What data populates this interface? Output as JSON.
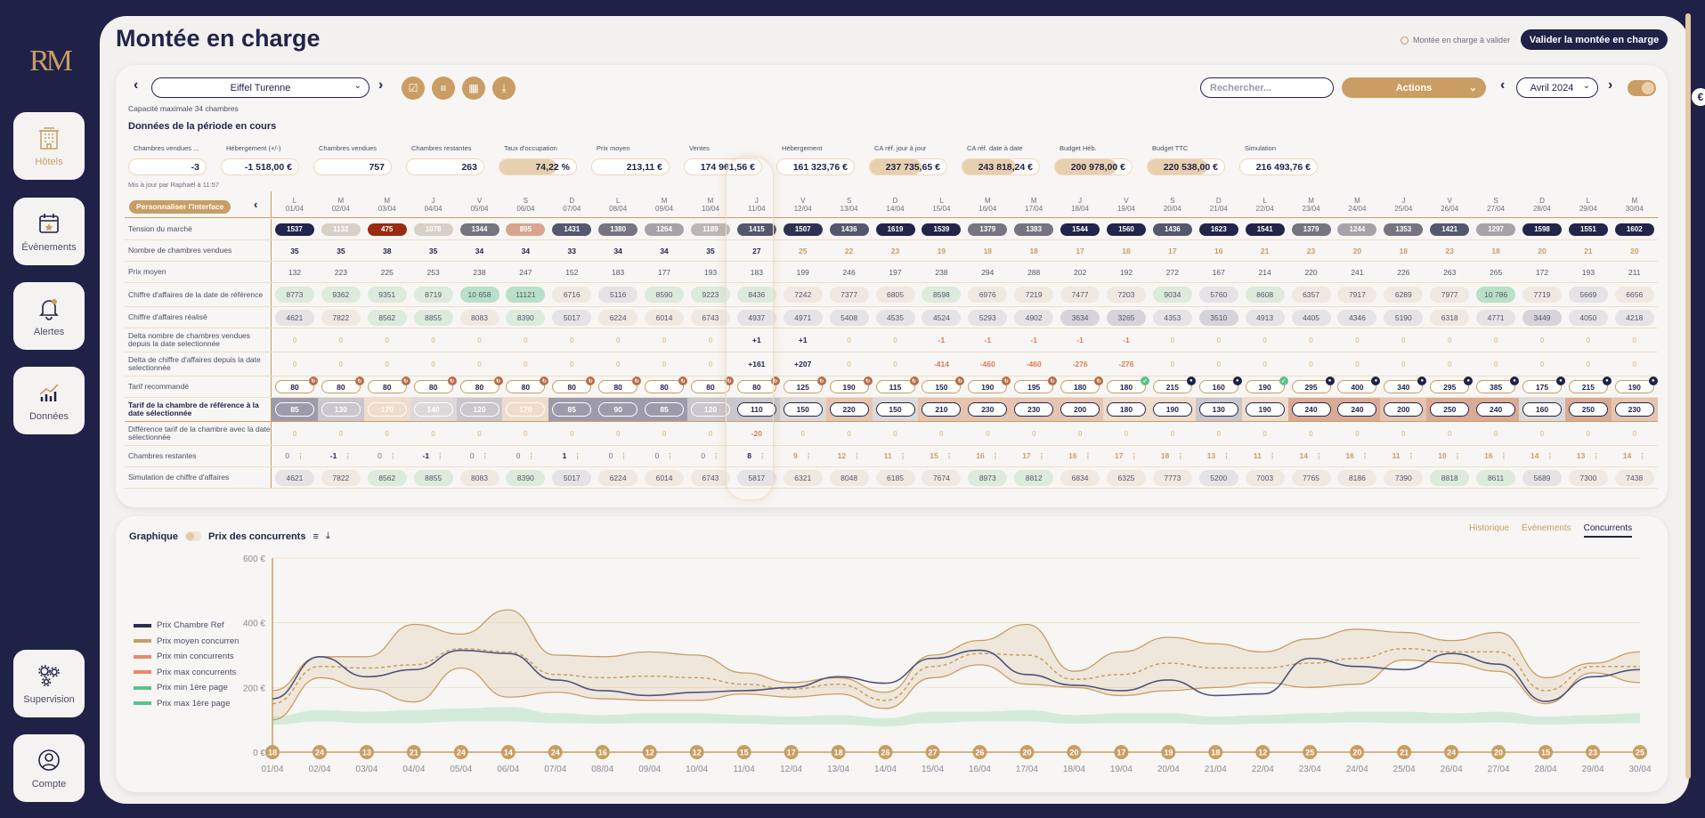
{
  "app": {
    "logo": "RM",
    "title": "Montée en charge",
    "to_validate": "Montée en charge à valider",
    "validate_button": "Valider la montée en charge"
  },
  "sidebar": {
    "items": [
      {
        "label": "Hôtels",
        "icon": "hotel-icon",
        "active": true
      },
      {
        "label": "Évènements",
        "icon": "calendar-icon"
      },
      {
        "label": "Alertes",
        "icon": "bell-icon"
      },
      {
        "label": "Données",
        "icon": "chart-icon"
      },
      {
        "label": "Supervision",
        "icon": "gears-icon"
      },
      {
        "label": "Compte",
        "icon": "user-icon"
      }
    ]
  },
  "toolbar": {
    "hotel": "Eiffel Turenne",
    "search_placeholder": "Rechercher...",
    "actions": "Actions",
    "month": "Avril 2024",
    "toggle_on": true
  },
  "capacity": "Capacité maximale 34 chambres",
  "section_title": "Données de la période en cours",
  "kpis": [
    {
      "label": "Chambres vendues ...",
      "value": "-3"
    },
    {
      "label": "Hébergement (+/-)",
      "value": "-1 518,00 €"
    },
    {
      "label": "Chambres vendues",
      "value": "757"
    },
    {
      "label": "Chambres restantes",
      "value": "263"
    },
    {
      "label": "Taux d'occupation",
      "value": "74,22 %",
      "fill": 74.22
    },
    {
      "label": "Prix moyen",
      "value": "213,11 €"
    },
    {
      "label": "Ventes",
      "value": "174 961,56 €"
    },
    {
      "label": "Hébergement",
      "value": "161 323,76 €"
    },
    {
      "label": "CA réf. jour à jour",
      "value": "237 735,65 €",
      "fill": 68
    },
    {
      "label": "CA réf. date à date",
      "value": "243 818,24 €",
      "fill": 70
    },
    {
      "label": "Budget Héb.",
      "value": "200 978,00 €",
      "fill": 80
    },
    {
      "label": "Budget TTC",
      "value": "220 538,00 €",
      "fill": 78
    },
    {
      "label": "Simulation",
      "value": "216 493,76 €"
    }
  ],
  "updated": "Mis à jour par Raphaël à 11:57",
  "customize": "Personnaliser l'interface",
  "selected_day": "11/04",
  "days": {
    "letters": [
      "L",
      "M",
      "M",
      "J",
      "V",
      "S",
      "D",
      "L",
      "M",
      "M",
      "J",
      "V",
      "S",
      "D",
      "L",
      "M",
      "M",
      "J",
      "V",
      "S",
      "D",
      "L",
      "M",
      "M",
      "J",
      "V",
      "S",
      "D",
      "L",
      "M"
    ],
    "dates": [
      "01/04",
      "02/04",
      "03/04",
      "04/04",
      "05/04",
      "06/04",
      "07/04",
      "08/04",
      "09/04",
      "10/04",
      "11/04",
      "12/04",
      "13/04",
      "14/04",
      "15/04",
      "16/04",
      "17/04",
      "18/04",
      "19/04",
      "20/04",
      "21/04",
      "22/04",
      "23/04",
      "24/04",
      "25/04",
      "26/04",
      "27/04",
      "28/04",
      "29/04",
      "30/04"
    ]
  },
  "table": {
    "rows": [
      {
        "label": "Tension du marché",
        "type": "tension",
        "values": [
          "1537",
          "1132",
          "475",
          "1078",
          "1344",
          "895",
          "1431",
          "1380",
          "1264",
          "1189",
          "1415",
          "1507",
          "1436",
          "1619",
          "1539",
          "1379",
          "1383",
          "1544",
          "1560",
          "1436",
          "1623",
          "1541",
          "1379",
          "1244",
          "1353",
          "1421",
          "1297",
          "1598",
          "1551",
          "1602"
        ]
      },
      {
        "label": "Nombre de chambres vendues",
        "type": "sold",
        "values": [
          "35",
          "35",
          "38",
          "35",
          "34",
          "34",
          "33",
          "34",
          "34",
          "35",
          "27",
          "25",
          "22",
          "23",
          "19",
          "18",
          "18",
          "17",
          "18",
          "17",
          "16",
          "21",
          "23",
          "20",
          "18",
          "23",
          "18",
          "20",
          "21",
          "20"
        ]
      },
      {
        "label": "Prix moyen",
        "type": "plain",
        "values": [
          "132",
          "223",
          "225",
          "253",
          "238",
          "247",
          "152",
          "183",
          "177",
          "193",
          "183",
          "199",
          "246",
          "197",
          "238",
          "294",
          "288",
          "202",
          "192",
          "272",
          "167",
          "214",
          "220",
          "241",
          "226",
          "263",
          "265",
          "172",
          "193",
          "211"
        ]
      },
      {
        "label": "Chiffre d'affaires de la date de référence",
        "type": "ca",
        "values": [
          "8773",
          "9362",
          "9351",
          "8719",
          "10 658",
          "11121",
          "6716",
          "5116",
          "8590",
          "9223",
          "8436",
          "7242",
          "7377",
          "6805",
          "8598",
          "6976",
          "7219",
          "7477",
          "7203",
          "9034",
          "5760",
          "8608",
          "6357",
          "7917",
          "6289",
          "7977",
          "10 786",
          "7719",
          "5669",
          "6656"
        ]
      },
      {
        "label": "Chiffre d'affaires réalisé",
        "type": "ca",
        "values": [
          "4621",
          "7822",
          "8562",
          "8855",
          "8083",
          "8390",
          "5017",
          "6224",
          "6014",
          "6743",
          "4937",
          "4971",
          "5408",
          "4535",
          "4524",
          "5293",
          "4902",
          "3634",
          "3265",
          "4353",
          "3510",
          "4913",
          "4405",
          "4346",
          "5190",
          "6318",
          "4771",
          "3449",
          "4050",
          "4218"
        ]
      },
      {
        "label": "Delta nombre de chambres vendues depuis la date selectionnée",
        "type": "delta",
        "values": [
          "0",
          "0",
          "0",
          "0",
          "0",
          "0",
          "0",
          "0",
          "0",
          "0",
          "+1",
          "+1",
          "0",
          "0",
          "-1",
          "-1",
          "-1",
          "-1",
          "-1",
          "0",
          "0",
          "0",
          "0",
          "0",
          "0",
          "0",
          "0",
          "0",
          "0",
          "0"
        ]
      },
      {
        "label": "Delta de chiffre d'affaires depuis la date selectionnée",
        "type": "delta",
        "values": [
          "0",
          "0",
          "0",
          "0",
          "0",
          "0",
          "0",
          "0",
          "0",
          "0",
          "+161",
          "+207",
          "0",
          "0",
          "-414",
          "-460",
          "-460",
          "-276",
          "-276",
          "0",
          "0",
          "0",
          "0",
          "0",
          "0",
          "0",
          "0",
          "0",
          "0",
          "0"
        ]
      },
      {
        "label": "Tarif recommandé",
        "type": "rec",
        "values": [
          "80",
          "80",
          "80",
          "80",
          "80",
          "80",
          "80",
          "80",
          "80",
          "80",
          "80",
          "125",
          "190",
          "115",
          "150",
          "190",
          "195",
          "180",
          "180",
          "215",
          "160",
          "190",
          "295",
          "400",
          "340",
          "295",
          "385",
          "175",
          "215",
          "190"
        ],
        "status": [
          "refresh",
          "refresh",
          "refresh",
          "refresh",
          "refresh",
          "refresh",
          "refresh",
          "refresh",
          "refresh",
          "refresh",
          "refresh",
          "refresh",
          "refresh",
          "refresh",
          "refresh",
          "refresh",
          "refresh",
          "refresh",
          "validated",
          "locked",
          "locked",
          "validated",
          "locked",
          "locked",
          "locked",
          "locked",
          "locked",
          "locked",
          "locked",
          "locked"
        ]
      },
      {
        "label": "Tarif de la chambre de référence à la date sélectionnée",
        "type": "ref",
        "values": [
          "85",
          "130",
          "170",
          "140",
          "120",
          "170",
          "85",
          "90",
          "85",
          "120",
          "110",
          "150",
          "220",
          "150",
          "210",
          "230",
          "230",
          "200",
          "180",
          "190",
          "130",
          "190",
          "240",
          "240",
          "200",
          "250",
          "240",
          "160",
          "250",
          "230"
        ]
      },
      {
        "label": "Différence tarif de la chambre avec la date sélectionnée",
        "type": "delta",
        "values": [
          "0",
          "0",
          "0",
          "0",
          "0",
          "0",
          "0",
          "0",
          "0",
          "0",
          "-20",
          "0",
          "0",
          "0",
          "0",
          "0",
          "0",
          "0",
          "0",
          "0",
          "0",
          "0",
          "0",
          "0",
          "0",
          "0",
          "0",
          "0",
          "0",
          "0"
        ]
      },
      {
        "label": "Chambres restantes",
        "type": "rest",
        "values": [
          "0",
          "-1",
          "0",
          "-1",
          "0",
          "0",
          "1",
          "0",
          "0",
          "0",
          "8",
          "9",
          "12",
          "11",
          "15",
          "16",
          "17",
          "16",
          "17",
          "18",
          "13",
          "11",
          "14",
          "16",
          "11",
          "10",
          "16",
          "14",
          "13",
          "14"
        ]
      },
      {
        "label": "Simulation de chiffre d'affaires",
        "type": "ca",
        "values": [
          "4621",
          "7822",
          "8562",
          "8855",
          "8083",
          "8390",
          "5017",
          "6224",
          "6014",
          "6743",
          "5817",
          "6321",
          "8048",
          "6185",
          "7674",
          "8973",
          "8812",
          "6834",
          "6325",
          "7773",
          "5200",
          "7003",
          "7765",
          "8186",
          "7390",
          "8818",
          "8611",
          "5689",
          "7300",
          "7438"
        ]
      }
    ]
  },
  "chart_header": {
    "title": "Graphique",
    "subtitle": "Prix des concurrents"
  },
  "chart_tabs": [
    {
      "label": "Historique"
    },
    {
      "label": "Évènements"
    },
    {
      "label": "Concurrents",
      "active": true
    }
  ],
  "colors": {
    "navy": "#1f2147",
    "gold": "#c99d63",
    "green": "#5cc38a",
    "salmon": "#e58a6c"
  },
  "chart_data": {
    "type": "line",
    "x": [
      "01/04",
      "02/04",
      "03/04",
      "04/04",
      "05/04",
      "06/04",
      "07/04",
      "08/04",
      "09/04",
      "10/04",
      "11/04",
      "12/04",
      "13/04",
      "14/04",
      "15/04",
      "16/04",
      "17/04",
      "18/04",
      "19/04",
      "20/04",
      "21/04",
      "22/04",
      "23/04",
      "24/04",
      "25/04",
      "26/04",
      "27/04",
      "28/04",
      "29/04",
      "30/04"
    ],
    "yticks": [
      "0 €",
      "200 €",
      "400 €",
      "600 €"
    ],
    "ylim": [
      0,
      600
    ],
    "legend_placement": "left",
    "series": [
      {
        "name": "Prix Chambre Ref",
        "color": "#2b2d52",
        "values": [
          165,
          295,
          233,
          255,
          315,
          305,
          223,
          190,
          175,
          185,
          190,
          200,
          233,
          213,
          290,
          315,
          240,
          207,
          190,
          223,
          175,
          180,
          290,
          265,
          255,
          305,
          272,
          157,
          233,
          255
        ]
      },
      {
        "name": "Prix moyen concurren",
        "color": "#c99d63",
        "dashed": true,
        "values": [
          150,
          265,
          260,
          270,
          320,
          310,
          240,
          230,
          235,
          230,
          210,
          195,
          210,
          160,
          265,
          305,
          300,
          225,
          240,
          275,
          260,
          260,
          275,
          290,
          320,
          310,
          310,
          190,
          265,
          265
        ]
      },
      {
        "name": "Prix min concurrents",
        "color": "#e58a6c",
        "values": [
          100,
          230,
          195,
          155,
          260,
          170,
          185,
          165,
          160,
          160,
          180,
          170,
          180,
          135,
          230,
          270,
          210,
          200,
          175,
          190,
          200,
          215,
          200,
          210,
          285,
          275,
          250,
          150,
          245,
          215
        ]
      },
      {
        "name": "Prix max concurrents",
        "color": "#e58a6c",
        "values": [
          190,
          295,
          295,
          395,
          365,
          440,
          300,
          295,
          310,
          300,
          245,
          215,
          230,
          185,
          300,
          345,
          395,
          250,
          310,
          355,
          335,
          310,
          350,
          380,
          370,
          345,
          370,
          230,
          275,
          310
        ]
      },
      {
        "name": "Prix min 1ère page",
        "color": "#5cc38a",
        "values": [
          85,
          95,
          90,
          90,
          95,
          95,
          90,
          88,
          90,
          90,
          88,
          85,
          85,
          80,
          90,
          95,
          95,
          88,
          90,
          90,
          85,
          88,
          90,
          92,
          90,
          90,
          92,
          85,
          88,
          90
        ]
      },
      {
        "name": "Prix max 1ère page",
        "color": "#5cc38a",
        "values": [
          110,
          130,
          125,
          130,
          135,
          140,
          120,
          115,
          120,
          120,
          115,
          110,
          115,
          105,
          125,
          125,
          130,
          115,
          120,
          120,
          110,
          115,
          120,
          125,
          125,
          120,
          125,
          110,
          115,
          120
        ]
      }
    ],
    "availability_markers": [
      "18",
      "24",
      "13",
      "21",
      "24",
      "14",
      "24",
      "16",
      "12",
      "12",
      "15",
      "17",
      "18",
      "26",
      "27",
      "26",
      "20",
      "20",
      "17",
      "19",
      "18",
      "12",
      "25",
      "20",
      "21",
      "24",
      "20",
      "15",
      "23",
      "25"
    ]
  }
}
